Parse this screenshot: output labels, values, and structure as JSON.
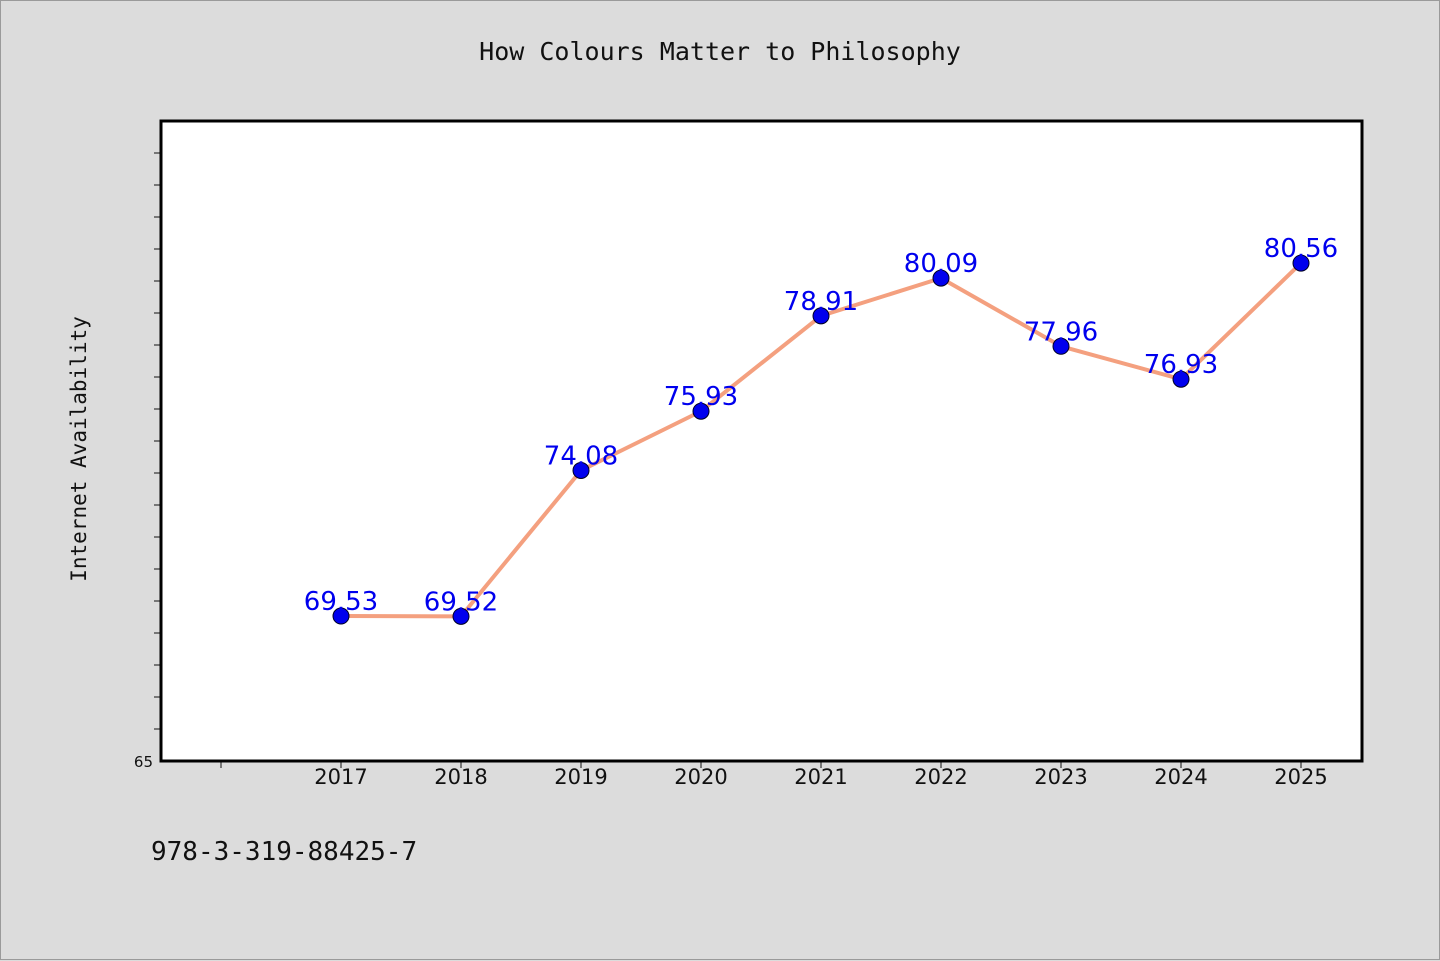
{
  "figure": {
    "title": "How Colours Matter to Philosophy",
    "footer_text": "978-3-319-88425-7"
  },
  "chart_data": {
    "type": "line",
    "title": "How Colours Matter to Philosophy",
    "xlabel": "",
    "ylabel": "Internet Availability",
    "categories": [
      "2017",
      "2018",
      "2019",
      "2020",
      "2021",
      "2022",
      "2023",
      "2024",
      "2025"
    ],
    "series": [
      {
        "values": [
          69.53,
          69.52,
          74.08,
          75.93,
          78.91,
          80.09,
          77.96,
          76.93,
          80.56
        ],
        "data_labels": [
          "69.53",
          "69.52",
          "74.08",
          "75.93",
          "78.91",
          "80.09",
          "77.96",
          "76.93",
          "80.56"
        ],
        "line_color": "#f4a07f",
        "marker_color": "#0000ee"
      }
    ],
    "ylim": [
      65,
      85
    ],
    "ytick_labels": [
      "65"
    ],
    "label_color": "#0000ee",
    "grid": false,
    "legend": "none"
  }
}
